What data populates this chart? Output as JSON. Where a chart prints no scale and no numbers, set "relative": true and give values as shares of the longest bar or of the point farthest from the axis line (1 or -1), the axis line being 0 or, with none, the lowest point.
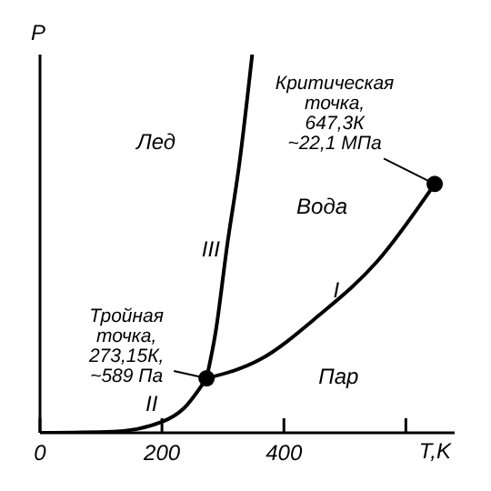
{
  "chart_data": {
    "type": "line",
    "xlabel": "T,K",
    "ylabel": "P",
    "relative": true,
    "xlim": [
      0,
      680
    ],
    "xticks": [
      0,
      200,
      400,
      {
        "value": 600,
        "label": null
      }
    ],
    "grid": false,
    "marker": "none",
    "series": [
      {
        "name": "I",
        "color": "#000000",
        "x": [
          273.15,
          361,
          457,
          553,
          647.3
        ],
        "values": [
          0.144,
          0.194,
          0.31,
          0.453,
          0.658
        ]
      },
      {
        "name": "II",
        "color": "#000000",
        "x": [
          0,
          120,
          200,
          236,
          273.15
        ],
        "values": [
          0,
          0.003,
          0.029,
          0.065,
          0.144
        ]
      },
      {
        "name": "III",
        "color": "#000000",
        "x": [
          273.15,
          288,
          307,
          327,
          348
        ],
        "values": [
          0.144,
          0.266,
          0.496,
          0.712,
          1
        ]
      },
      {
        "type": "scatter",
        "marker": "circle",
        "color": "#000000",
        "x": [
          273.15,
          647.3
        ],
        "values": [
          0.144,
          0.658
        ]
      }
    ],
    "annotations": [
      "Лед",
      "Вода",
      "Пар",
      {
        "text": "Тройная\nточка,\n273,15К,\n~589 Па",
        "x": 273.15,
        "y": 0.144
      },
      {
        "text": "Критическая\nточка,\n647,3К\n~22,1 МПа",
        "x": 647.3,
        "y": 0.658
      }
    ]
  }
}
